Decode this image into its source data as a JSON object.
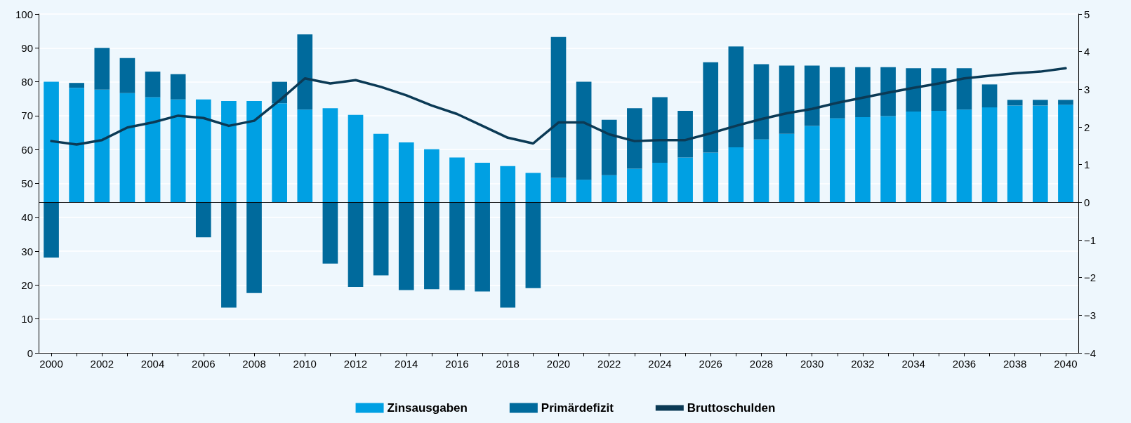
{
  "chart_data": {
    "type": "bar",
    "stacked": true,
    "categories": [
      "2000",
      null,
      "2002",
      null,
      "2004",
      null,
      "2006",
      null,
      "2008",
      null,
      "2010",
      null,
      "2012",
      null,
      "2014",
      null,
      "2016",
      null,
      "2018",
      null,
      "2020",
      null,
      "2022",
      null,
      "2024",
      null,
      "2026",
      null,
      "2028",
      null,
      "2030",
      null,
      "2032",
      null,
      "2034",
      null,
      "2036",
      null,
      "2038",
      null,
      "2040"
    ],
    "series": [
      {
        "name": "Zinsausgaben",
        "color": "#00a0e3",
        "axis": "y2",
        "values": [
          3.2,
          3.04,
          2.99,
          2.9,
          2.79,
          2.73,
          2.73,
          2.69,
          2.69,
          2.63,
          2.46,
          2.5,
          2.32,
          1.82,
          1.59,
          1.41,
          1.19,
          1.05,
          0.96,
          0.78,
          0.65,
          0.6,
          0.72,
          0.89,
          1.05,
          1.19,
          1.32,
          1.46,
          1.67,
          1.82,
          2.03,
          2.23,
          2.26,
          2.29,
          2.41,
          2.43,
          2.46,
          2.52,
          2.57,
          2.57,
          2.59
        ]
      },
      {
        "name": "Primärdefizit",
        "color": "#006a9c",
        "axis": "y2",
        "values": [
          -1.47,
          0.13,
          1.11,
          0.93,
          0.68,
          0.67,
          -0.93,
          -2.8,
          -2.41,
          0.57,
          2.0,
          -1.63,
          -2.25,
          -1.94,
          -2.33,
          -2.31,
          -2.33,
          -2.37,
          -2.8,
          -2.28,
          3.74,
          2.6,
          1.47,
          1.61,
          1.74,
          1.24,
          2.4,
          2.68,
          2.0,
          1.81,
          1.6,
          1.36,
          1.33,
          1.3,
          1.15,
          1.13,
          1.1,
          0.61,
          0.15,
          0.15,
          0.13
        ]
      },
      {
        "name": "Bruttoschulden",
        "type": "line",
        "color": "#0b3a55",
        "values": [
          62.5,
          61.5,
          62.8,
          66.5,
          68,
          70,
          69.3,
          67,
          68.5,
          74.5,
          81,
          79.5,
          80.5,
          78.5,
          76,
          73,
          70.5,
          67,
          63.5,
          61.8,
          68,
          68,
          64.5,
          62.5,
          62.8,
          62.8,
          64.8,
          67,
          69,
          70.7,
          72,
          73.8,
          75.3,
          76.8,
          78.2,
          79.5,
          81,
          81.8,
          82.5,
          83,
          84
        ]
      }
    ],
    "ylim": [
      0,
      100
    ],
    "yticks": [
      0,
      10,
      20,
      30,
      40,
      50,
      60,
      70,
      80,
      90,
      100
    ],
    "y2lim": [
      -4,
      5
    ],
    "y2ticks": [
      {
        "value": -4,
        "label": "−4"
      },
      {
        "value": -3,
        "label": "−3"
      },
      {
        "value": -2,
        "label": "−2"
      },
      {
        "value": -1,
        "label": "−1"
      },
      0,
      1,
      2,
      3,
      4,
      5
    ],
    "ref_lines": [
      {
        "axis": "y2",
        "value": 0,
        "color": "#000000"
      }
    ],
    "grid": "y",
    "legend": "bottom",
    "marker": "none",
    "line_style": "solid"
  }
}
